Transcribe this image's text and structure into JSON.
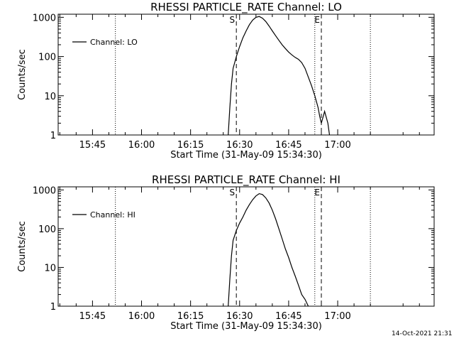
{
  "footer": "14-Oct-2021 21:31",
  "chart_data": [
    {
      "type": "line",
      "title": "RHESSI PARTICLE_RATE Channel: LO",
      "xlabel": "Start Time (31-May-09 15:34:30)",
      "ylabel": "Counts/sec",
      "yscale": "log",
      "ylim": [
        1,
        1000
      ],
      "xlim_minutes_after_start": [
        0,
        115
      ],
      "x_tick_labels": [
        "15:45",
        "16:00",
        "16:15",
        "16:30",
        "16:45",
        "17:00"
      ],
      "y_tick_labels": [
        "1",
        "10",
        "100",
        "1000"
      ],
      "legend": {
        "entries": [
          "Channel: LO"
        ],
        "position": "top-left"
      },
      "markers": [
        {
          "label": "S",
          "time": "16:29",
          "style": "dashed"
        },
        {
          "label": "E",
          "time": "16:55",
          "style": "dashed"
        }
      ],
      "vlines_dotted": [
        "15:52",
        "16:53",
        "17:10"
      ],
      "series": [
        {
          "name": "Channel: LO",
          "x": [
            "16:26.5",
            "16:27",
            "16:27.5",
            "16:28",
            "16:29",
            "16:30",
            "16:31",
            "16:32",
            "16:33",
            "16:34",
            "16:35",
            "16:36",
            "16:37",
            "16:38",
            "16:39",
            "16:40",
            "16:41",
            "16:42",
            "16:43",
            "16:44",
            "16:45",
            "16:46",
            "16:47",
            "16:48",
            "16:49",
            "16:50",
            "16:51",
            "16:52",
            "16:53",
            "16:54",
            "16:54.5",
            "16:55",
            "16:56",
            "16:57",
            "16:57.5"
          ],
          "y": [
            1,
            5,
            20,
            50,
            100,
            180,
            300,
            450,
            650,
            850,
            1000,
            1050,
            950,
            780,
            600,
            450,
            340,
            260,
            200,
            160,
            130,
            110,
            95,
            85,
            70,
            50,
            30,
            18,
            10,
            5,
            3,
            2,
            4,
            2,
            1
          ]
        }
      ]
    },
    {
      "type": "line",
      "title": "RHESSI PARTICLE_RATE Channel: HI",
      "xlabel": "Start Time (31-May-09 15:34:30)",
      "ylabel": "Counts/sec",
      "yscale": "log",
      "ylim": [
        1,
        1000
      ],
      "xlim_minutes_after_start": [
        0,
        115
      ],
      "x_tick_labels": [
        "15:45",
        "16:00",
        "16:15",
        "16:30",
        "16:45",
        "17:00"
      ],
      "y_tick_labels": [
        "1",
        "10",
        "100",
        "1000"
      ],
      "legend": {
        "entries": [
          "Channel: HI"
        ],
        "position": "top-left"
      },
      "markers": [
        {
          "label": "S",
          "time": "16:29",
          "style": "dashed"
        },
        {
          "label": "E",
          "time": "16:55",
          "style": "dashed"
        }
      ],
      "vlines_dotted": [
        "15:52",
        "16:53",
        "17:10"
      ],
      "series": [
        {
          "name": "Channel: HI",
          "x": [
            "16:26.5",
            "16:27",
            "16:27.5",
            "16:28",
            "16:29",
            "16:30",
            "16:31",
            "16:32",
            "16:33",
            "16:34",
            "16:35",
            "16:36",
            "16:37",
            "16:38",
            "16:39",
            "16:40",
            "16:41",
            "16:42",
            "16:43",
            "16:44",
            "16:45",
            "16:46",
            "16:47",
            "16:48",
            "16:49",
            "16:50",
            "16:51"
          ],
          "y": [
            1,
            5,
            20,
            50,
            90,
            140,
            200,
            300,
            420,
            560,
            700,
            800,
            760,
            620,
            460,
            300,
            180,
            100,
            55,
            30,
            18,
            10,
            6,
            3.5,
            2,
            1.5,
            1
          ]
        }
      ]
    }
  ]
}
